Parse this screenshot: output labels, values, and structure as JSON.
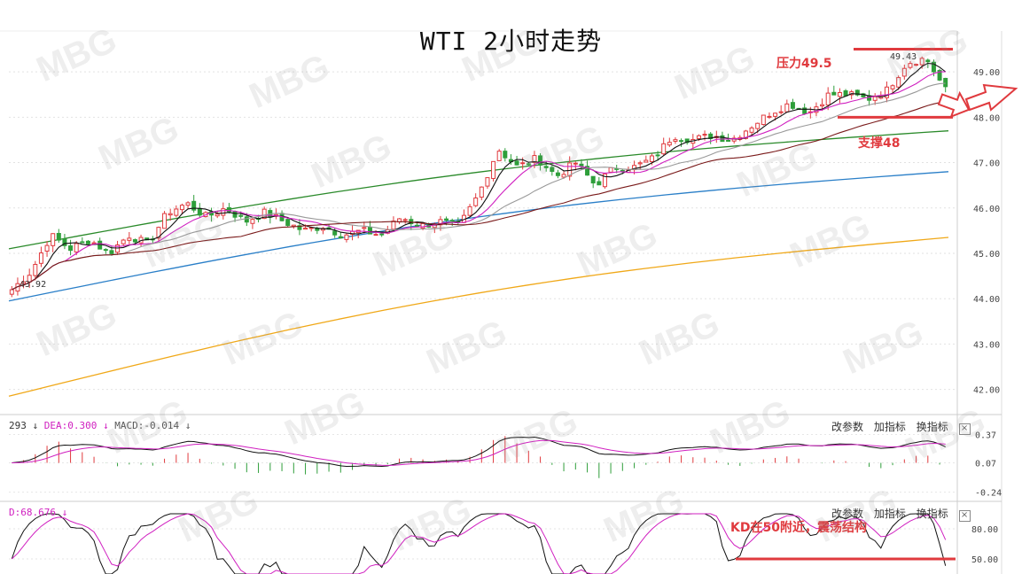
{
  "title": "WTI 2小时走势",
  "watermark": "MBG",
  "annotations": {
    "resistance": "压力49.5",
    "support": "支撑48",
    "kd_note": "KD在50附近，震荡结构"
  },
  "labels": {
    "max_price": "49.43",
    "min_price": "43.92"
  },
  "macd_header": {
    "dif": "293 ↓",
    "dea": "DEA:0.300 ↓",
    "macd": "MACD:-0.014 ↓"
  },
  "kd_header": {
    "d": "D:68.676 ↓"
  },
  "controls": {
    "params": "改参数",
    "add": "加指标",
    "switch": "换指标",
    "close": "×"
  },
  "colors": {
    "up": "#e03a3e",
    "down": "#2e9e3a",
    "ma_red": "#7a1a1a",
    "ma_blue": "#2a7fc8",
    "ma_orange": "#f0a818",
    "ma_green": "#2a8a2a",
    "magenta": "#d020c0",
    "annotation": "#e03a3e"
  },
  "chart_data": [
    {
      "type": "candlestick",
      "title": "WTI 2小时走势",
      "ylim": [
        41.7,
        49.9
      ],
      "y_ticks": [
        "49.00",
        "48.00",
        "47.00",
        "46.00",
        "45.00",
        "44.00",
        "43.00",
        "42.00"
      ],
      "close_path": [
        44.2,
        44.6,
        45.4,
        45.1,
        45.3,
        45.0,
        45.4,
        45.2,
        45.9,
        46.1,
        45.8,
        46.0,
        45.7,
        45.9,
        45.7,
        45.5,
        45.6,
        45.4,
        45.5,
        45.4,
        45.8,
        45.6,
        45.7,
        45.6,
        46.3,
        47.3,
        46.9,
        47.1,
        46.7,
        47.0,
        46.5,
        46.9,
        46.9,
        47.1,
        47.6,
        47.5,
        47.6,
        47.5,
        47.8,
        48.1,
        48.3,
        48.1,
        48.5,
        48.5,
        48.4,
        48.6,
        49.2,
        49.3,
        48.6
      ],
      "moving_averages": [
        {
          "color": "ma_orange",
          "from": 41.85,
          "to": 45.35
        },
        {
          "color": "ma_blue",
          "from": 43.95,
          "to": 46.8
        },
        {
          "color": "ma_green",
          "from": 45.1,
          "to": 47.7
        }
      ],
      "resistance": 49.5,
      "support": 48,
      "max_label": 49.43,
      "min_label": 43.92
    },
    {
      "type": "bar+line",
      "name": "MACD",
      "y_ticks": [
        "0.37",
        "0.07",
        "-0.24"
      ],
      "ylim": [
        -0.3,
        0.45
      ],
      "dea": 0.3,
      "macd": -0.014
    },
    {
      "type": "line",
      "name": "KD",
      "y_ticks": [
        "80.00",
        "50.00"
      ],
      "ylim": [
        35,
        95
      ],
      "d": 68.676
    }
  ]
}
